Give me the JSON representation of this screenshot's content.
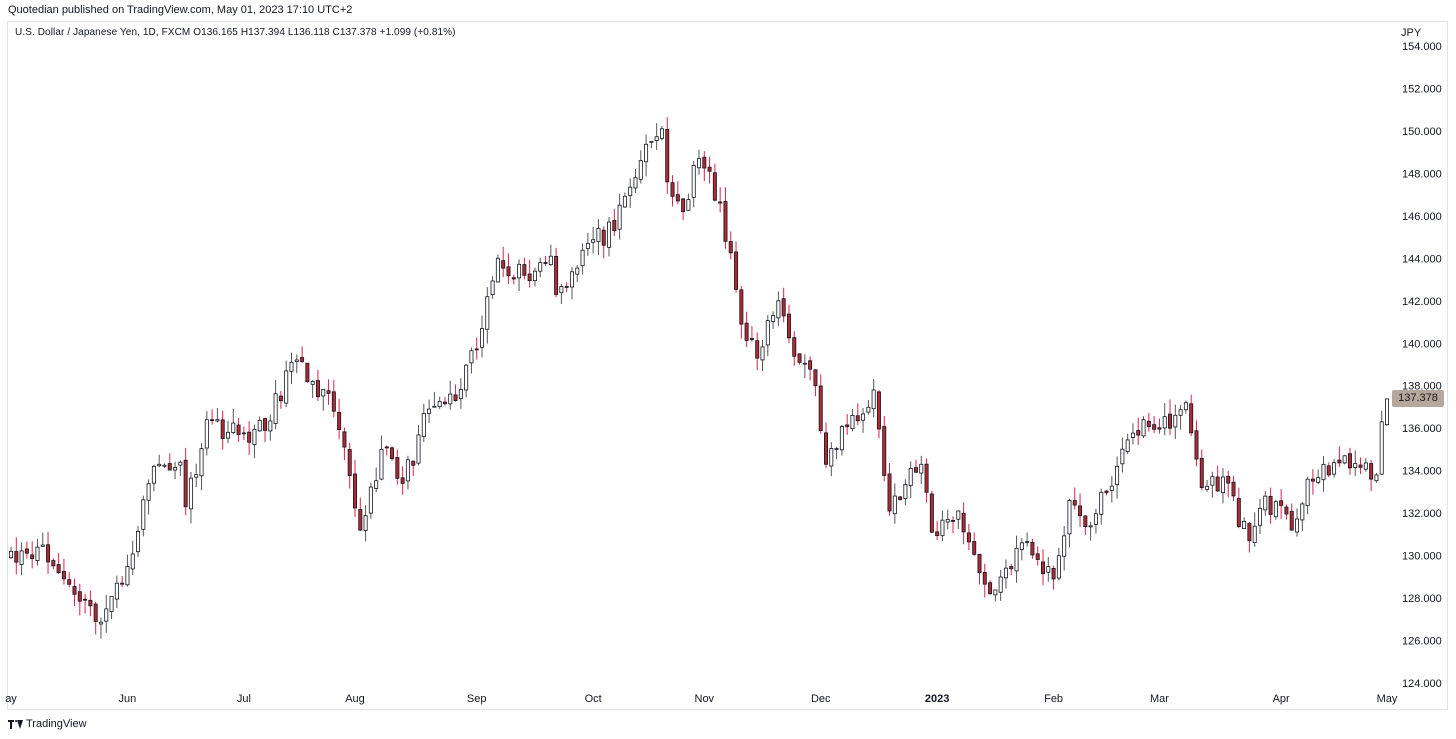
{
  "header": {
    "published_line": "Quotedian published on TradingView.com, May 01, 2023 17:10 UTC+2"
  },
  "legend": {
    "text": "U.S. Dollar / Japanese Yen, 1D, FXCM  O136.165  H137.394  L136.118  C137.378  +1.099 (+0.81%)"
  },
  "price_axis": {
    "currency": "JPY",
    "last_price_label": "137.378"
  },
  "footer": {
    "brand": "TradingView",
    "logo_icon": "tradingview-logo-icon"
  },
  "colors": {
    "up_body": "#ffffff",
    "down_body": "#b22833",
    "candle_outline": "#131722",
    "wick_color": "#555555",
    "down_wick": "#d9224c",
    "last_price_tag": "#b5a79b"
  },
  "chart_data": {
    "type": "candlestick",
    "symbol": "USD/JPY",
    "interval": "1D",
    "ylim": [
      124,
      154
    ],
    "grid": false,
    "y_ticks": [
      "124.000",
      "126.000",
      "128.000",
      "130.000",
      "132.000",
      "134.000",
      "136.000",
      "138.000",
      "140.000",
      "142.000",
      "144.000",
      "146.000",
      "148.000",
      "150.000",
      "152.000",
      "154.000"
    ],
    "x_ticks": [
      {
        "label": "ay",
        "date": "2022-05-02"
      },
      {
        "label": "Jun",
        "date": "2022-06-01"
      },
      {
        "label": "Jul",
        "date": "2022-07-01"
      },
      {
        "label": "Aug",
        "date": "2022-08-01"
      },
      {
        "label": "Sep",
        "date": "2022-09-01"
      },
      {
        "label": "Oct",
        "date": "2022-10-03"
      },
      {
        "label": "Nov",
        "date": "2022-11-01"
      },
      {
        "label": "Dec",
        "date": "2022-12-01"
      },
      {
        "label": "2023",
        "date": "2023-01-02",
        "bold": true
      },
      {
        "label": "Feb",
        "date": "2023-02-01"
      },
      {
        "label": "Mar",
        "date": "2023-03-01"
      },
      {
        "label": "Apr",
        "date": "2023-04-03"
      },
      {
        "label": "May",
        "date": "2023-05-01"
      }
    ],
    "anchors_close": [
      [
        "2022-05-02",
        130.2
      ],
      [
        "2022-05-09",
        130.4
      ],
      [
        "2022-05-13",
        129.2
      ],
      [
        "2022-05-20",
        127.9
      ],
      [
        "2022-05-24",
        126.9
      ],
      [
        "2022-05-31",
        128.7
      ],
      [
        "2022-06-08",
        134.2
      ],
      [
        "2022-06-15",
        134.4
      ],
      [
        "2022-06-16",
        132.3
      ],
      [
        "2022-06-22",
        136.4
      ],
      [
        "2022-06-30",
        135.7
      ],
      [
        "2022-07-07",
        135.9
      ],
      [
        "2022-07-14",
        139.1
      ],
      [
        "2022-07-20",
        138.2
      ],
      [
        "2022-07-26",
        136.8
      ],
      [
        "2022-08-02",
        131.2
      ],
      [
        "2022-08-08",
        135.0
      ],
      [
        "2022-08-12",
        133.4
      ],
      [
        "2022-08-19",
        136.9
      ],
      [
        "2022-08-26",
        137.3
      ],
      [
        "2022-09-01",
        139.7
      ],
      [
        "2022-09-07",
        144.0
      ],
      [
        "2022-09-14",
        143.2
      ],
      [
        "2022-09-21",
        144.1
      ],
      [
        "2022-09-22",
        142.3
      ],
      [
        "2022-09-30",
        144.7
      ],
      [
        "2022-10-07",
        145.3
      ],
      [
        "2022-10-14",
        148.6
      ],
      [
        "2022-10-20",
        150.1
      ],
      [
        "2022-10-21",
        147.6
      ],
      [
        "2022-10-26",
        146.2
      ],
      [
        "2022-10-31",
        148.7
      ],
      [
        "2022-11-04",
        146.6
      ],
      [
        "2022-11-10",
        140.9
      ],
      [
        "2022-11-15",
        139.3
      ],
      [
        "2022-11-21",
        142.0
      ],
      [
        "2022-11-25",
        139.1
      ],
      [
        "2022-11-30",
        138.0
      ],
      [
        "2022-12-02",
        134.3
      ],
      [
        "2022-12-09",
        136.6
      ],
      [
        "2022-12-15",
        137.8
      ],
      [
        "2022-12-20",
        132.1
      ],
      [
        "2022-12-28",
        134.3
      ],
      [
        "2022-12-30",
        131.1
      ],
      [
        "2023-01-06",
        132.1
      ],
      [
        "2023-01-12",
        129.2
      ],
      [
        "2023-01-16",
        128.2
      ],
      [
        "2023-01-24",
        130.6
      ],
      [
        "2023-02-01",
        128.9
      ],
      [
        "2023-02-06",
        132.6
      ],
      [
        "2023-02-10",
        131.4
      ],
      [
        "2023-02-17",
        134.2
      ],
      [
        "2023-02-24",
        136.4
      ],
      [
        "2023-03-03",
        136.0
      ],
      [
        "2023-03-08",
        137.2
      ],
      [
        "2023-03-13",
        133.2
      ],
      [
        "2023-03-17",
        133.7
      ],
      [
        "2023-03-24",
        130.7
      ],
      [
        "2023-03-29",
        132.8
      ],
      [
        "2023-04-05",
        131.2
      ],
      [
        "2023-04-10",
        133.6
      ],
      [
        "2023-04-14",
        133.8
      ],
      [
        "2023-04-19",
        134.7
      ],
      [
        "2023-04-26",
        133.6
      ],
      [
        "2023-04-27",
        133.8
      ],
      [
        "2023-04-28",
        136.3
      ],
      [
        "2023-05-01",
        137.378
      ]
    ],
    "last_candle": {
      "date": "2023-05-01",
      "open": 136.165,
      "high": 137.394,
      "low": 136.118,
      "close": 137.378
    }
  }
}
